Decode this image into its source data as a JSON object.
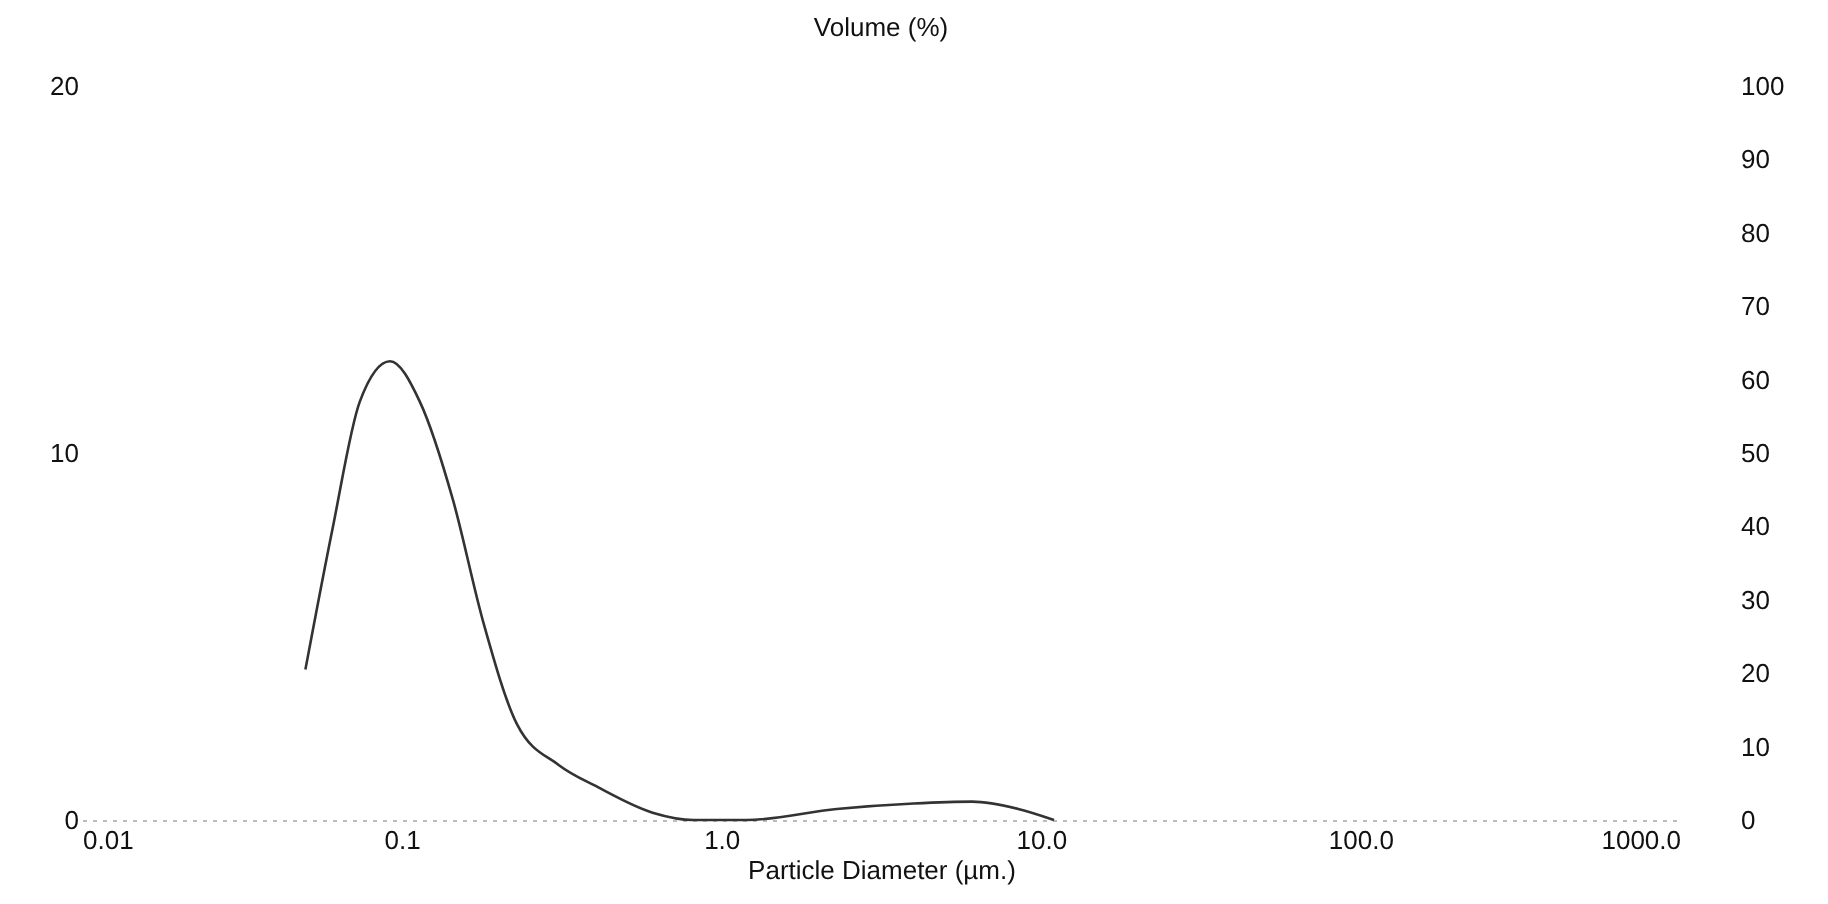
{
  "chart_data": {
    "type": "line",
    "title": "Volume (%)",
    "xlabel": "Particle Diameter (µm.)",
    "x": [
      0.05,
      0.061,
      0.074,
      0.092,
      0.114,
      0.145,
      0.18,
      0.23,
      0.31,
      0.41,
      0.61,
      0.82,
      1.2,
      2.3,
      4.0,
      6.1,
      8.5,
      11
    ],
    "series": [
      {
        "color": "#333333",
        "values": [
          4.1,
          8.0,
          11.4,
          12.5,
          11.4,
          8.7,
          5.4,
          2.6,
          1.5,
          0.9,
          0.2,
          0,
          0,
          0.3,
          0.45,
          0.5,
          0.3,
          0
        ]
      }
    ],
    "log": "x",
    "xlim": [
      0.01,
      1000
    ],
    "xticks": [
      0.01,
      0.1,
      {
        "value": 1,
        "label": "1.0"
      },
      {
        "value": 10,
        "label": "10.0"
      },
      {
        "value": 100,
        "label": "100.0"
      },
      {
        "value": 1000,
        "label": "1000.0"
      }
    ],
    "ylim": [
      0,
      20
    ],
    "yticks": [
      0,
      10,
      20
    ],
    "y2lim": [
      0,
      100
    ],
    "y2ticks": [
      0,
      10,
      20,
      30,
      40,
      50,
      60,
      70,
      80,
      90,
      100
    ],
    "grid": false,
    "marker": "none",
    "line_style": "solid"
  }
}
